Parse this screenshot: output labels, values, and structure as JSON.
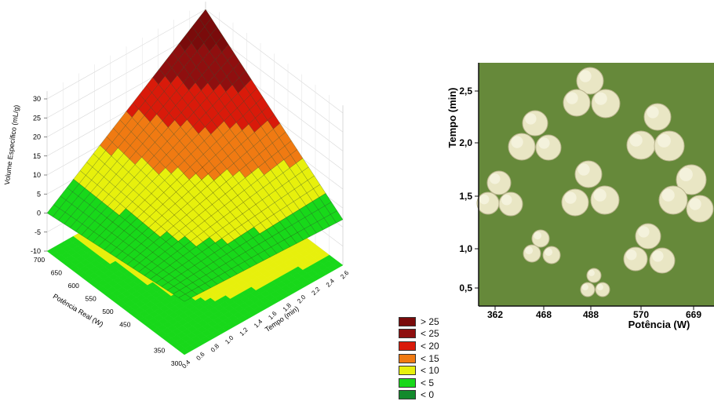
{
  "chart_data": [
    {
      "type": "surface",
      "zlabel": "Volume Específico (mL/g)",
      "xlabel": "Potência Real (W)",
      "ylabel": "Tempo (min)",
      "z_ticks": [
        "30",
        "25",
        "20",
        "15",
        "10",
        "5",
        "0",
        "-5",
        "-10"
      ],
      "x_ticks": [
        "700",
        "650",
        "600",
        "550",
        "500",
        "450",
        "350",
        "300"
      ],
      "y_ticks": [
        "0.4",
        "0.6",
        "0.8",
        "1.0",
        "1.2",
        "1.4",
        "1.6",
        "1.8",
        "2.0",
        "2.2",
        "2.4",
        "2.6"
      ],
      "xlim": [
        300,
        700
      ],
      "ylim": [
        0.4,
        2.6
      ],
      "zlim": [
        -10,
        30
      ],
      "corner_values": {
        "p300_t0_4": 4,
        "p700_t0_4": 0,
        "p300_t2_6": 2,
        "p700_t2_6": 30
      },
      "legend": [
        {
          "label": "> 25",
          "color": "#7a0b0b"
        },
        {
          "label": "< 25",
          "color": "#8f0f0f"
        },
        {
          "label": "< 20",
          "color": "#d91a0a"
        },
        {
          "label": "< 15",
          "color": "#f07a12"
        },
        {
          "label": "< 10",
          "color": "#e7f00c"
        },
        {
          "label": "< 5",
          "color": "#18d81a"
        },
        {
          "label": "< 0",
          "color": "#138a2c"
        }
      ]
    },
    {
      "type": "photo-grid",
      "xlabel": "Potência (W)",
      "ylabel": "Tempo (min)",
      "x_ticks": [
        "362",
        "468",
        "488",
        "570",
        "669"
      ],
      "y_ticks": [
        "2,5",
        "2,0",
        "1,5",
        "1,0",
        "0,5"
      ],
      "background_color": "#66893a"
    }
  ]
}
